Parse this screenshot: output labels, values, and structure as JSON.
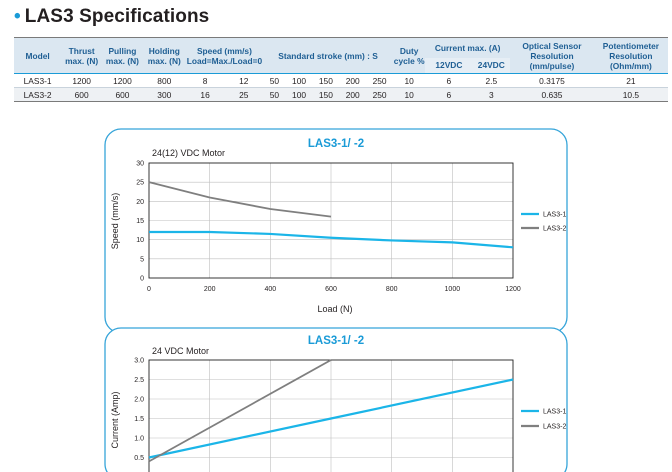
{
  "heading": {
    "bullet": "•",
    "title": "LAS3 Specifications"
  },
  "table": {
    "headers": {
      "model": "Model",
      "thrust": "Thrust max. (N)",
      "pulling": "Pulling max. (N)",
      "holding": "Holding max. (N)",
      "speed": "Speed (mm/s) Load=Max./Load=0",
      "stroke": "Standard stroke (mm) : S",
      "duty": "Duty cycle %",
      "current": "Current max. (A)",
      "current_12": "12VDC",
      "current_24": "24VDC",
      "optical": "Optical Sensor Resolution (mm/pulse)",
      "pot": "Potentiometer Resolution (Ohm/mm)"
    },
    "rows": [
      {
        "model": "LAS3-1",
        "thrust": "1200",
        "pulling": "1200",
        "holding": "800",
        "speed_max": "8",
        "speed_zero": "12",
        "strokes": [
          "50",
          "100",
          "150",
          "200",
          "250"
        ],
        "duty": "10",
        "c12": "6",
        "c24": "2.5",
        "optical": "0.3175",
        "pot": "21"
      },
      {
        "model": "LAS3-2",
        "thrust": "600",
        "pulling": "600",
        "holding": "300",
        "speed_max": "16",
        "speed_zero": "25",
        "strokes": [
          "50",
          "100",
          "150",
          "200",
          "250"
        ],
        "duty": "10",
        "c12": "6",
        "c24": "3",
        "optical": "0.635",
        "pot": "10.5"
      }
    ]
  },
  "colors": {
    "accent": "#1a9bd7",
    "series1": "#1bb5e8",
    "series2": "#7f7f7f",
    "panel_border": "#35a4d9",
    "header_bg": "#dbe7f1"
  },
  "chart_data": [
    {
      "type": "line",
      "title": "LAS3-1/ -2",
      "subtitle": "24(12) VDC Motor",
      "xlabel": "Load (N)",
      "ylabel": "Speed (mm/s)",
      "xlim": [
        0,
        1200
      ],
      "ylim": [
        0,
        30
      ],
      "xticks": [
        "0",
        "200",
        "400",
        "600",
        "800",
        "1000",
        "1200"
      ],
      "yticks": [
        "0",
        "5",
        "10",
        "15",
        "20",
        "25",
        "30"
      ],
      "grid": true,
      "legend": "right",
      "series": [
        {
          "name": "LAS3-1",
          "x": [
            0,
            200,
            400,
            600,
            800,
            1000,
            1200
          ],
          "y": [
            12,
            12,
            11.5,
            10.5,
            9.8,
            9.3,
            8
          ]
        },
        {
          "name": "LAS3-2",
          "x": [
            0,
            200,
            400,
            600
          ],
          "y": [
            25,
            21,
            18,
            16
          ]
        }
      ]
    },
    {
      "type": "line",
      "title": "LAS3-1/ -2",
      "subtitle": "24 VDC Motor",
      "xlabel": "",
      "ylabel": "Current (Amp)",
      "xlim": [
        0,
        1200
      ],
      "ylim": [
        0,
        3.0
      ],
      "yticks": [
        "0.5",
        "1.0",
        "1.5",
        "2.0",
        "2.5",
        "3.0"
      ],
      "grid": true,
      "legend": "right",
      "series": [
        {
          "name": "LAS3-1",
          "x": [
            0,
            600,
            1200
          ],
          "y": [
            0.5,
            1.5,
            2.5
          ]
        },
        {
          "name": "LAS3-2",
          "x": [
            0,
            600
          ],
          "y": [
            0.4,
            3.0
          ]
        }
      ]
    }
  ]
}
